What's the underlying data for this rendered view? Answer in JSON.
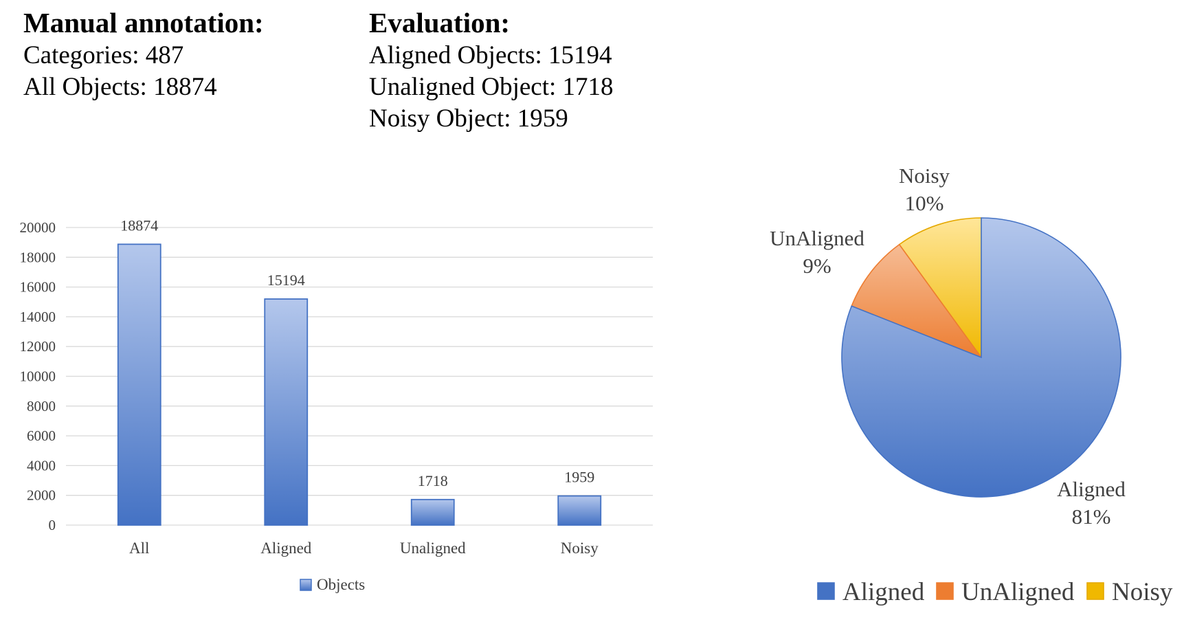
{
  "header": {
    "manual_title": "Manual annotation:",
    "manual_lines": [
      "Categories: 487",
      "All Objects: 18874"
    ],
    "eval_title": "Evaluation:",
    "eval_lines": [
      "Aligned Objects: 15194",
      "Unaligned Object: 1718",
      "Noisy Object: 1959"
    ]
  },
  "chart_data": [
    {
      "type": "bar",
      "categories": [
        "All",
        "Aligned",
        "Unaligned",
        "Noisy"
      ],
      "series": [
        {
          "name": "Objects",
          "values": [
            18874,
            15194,
            1718,
            1959
          ]
        }
      ],
      "data_labels": [
        "18874",
        "15194",
        "1718",
        "1959"
      ],
      "yticks": [
        "0",
        "2000",
        "4000",
        "6000",
        "8000",
        "10000",
        "12000",
        "14000",
        "16000",
        "18000",
        "20000"
      ],
      "ylim": [
        0,
        20000
      ],
      "grid": true,
      "legend": "bottom",
      "colors": {
        "bar_top": "#b4c7ec",
        "bar_bottom": "#4472c4",
        "grid": "#d9d9d9"
      }
    },
    {
      "type": "pie",
      "categories": [
        "Aligned",
        "UnAligned",
        "Noisy"
      ],
      "values": [
        81,
        9,
        10
      ],
      "slice_labels": [
        {
          "name": "Aligned",
          "pct": "81%"
        },
        {
          "name": "UnAligned",
          "pct": "9%"
        },
        {
          "name": "Noisy",
          "pct": "10%"
        }
      ],
      "legend": "bottom",
      "colors": [
        {
          "top": "#b4c7ec",
          "bottom": "#4472c4",
          "edge": "#4472c4"
        },
        {
          "top": "#f8cbad",
          "bottom": "#ed7d31",
          "edge": "#ed7d31"
        },
        {
          "top": "#ffe699",
          "bottom": "#f0b800",
          "edge": "#e5a800"
        }
      ]
    }
  ]
}
